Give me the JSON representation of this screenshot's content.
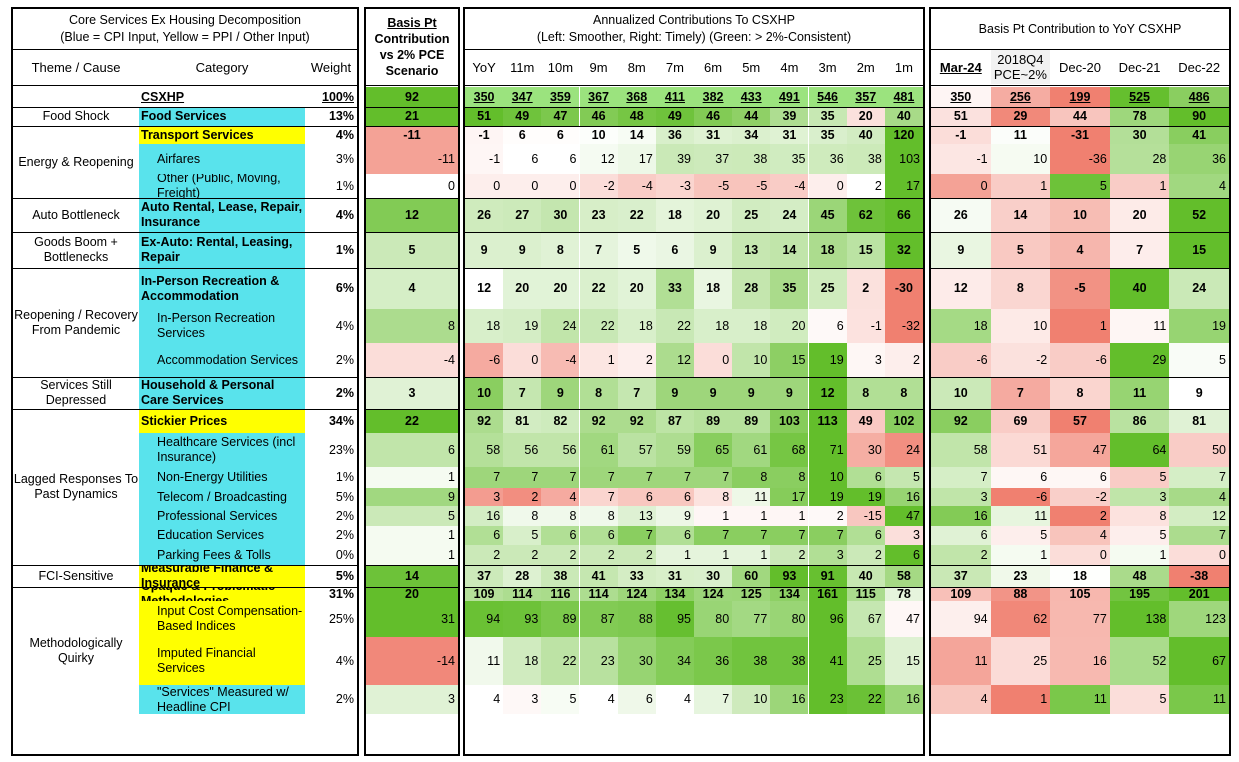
{
  "colors": {
    "blue_input": "#59e3ec",
    "yellow_input": "#ffff00",
    "high_green": "#63be2b",
    "low_red": "#f08070"
  },
  "headers": {
    "left_title_1": "Core Services Ex Housing Decomposition",
    "left_title_2": "(Blue = CPI Input, Yellow = PPI / Other Input)",
    "theme_header": "Theme / Cause",
    "category_header": "Category",
    "weight_header": "Weight",
    "basis_title_1": "Basis Pt",
    "basis_title_2": "Contribution",
    "basis_title_3": "vs 2% PCE",
    "basis_title_4": "Scenario",
    "ann_title_1": "Annualized Contributions To CSXHP",
    "ann_title_2": "(Left: Smoother, Right: Timely) (Green: > 2%-Consistent)",
    "ann_cols": [
      "YoY",
      "11m",
      "10m",
      "9m",
      "8m",
      "7m",
      "6m",
      "5m",
      "4m",
      "3m",
      "2m",
      "1m"
    ],
    "yoy_title": "Basis Pt Contribution to YoY CSXHP",
    "yoy_cols": [
      "Mar-24",
      "2018Q4 PCE~2%",
      "Dec-20",
      "Dec-21",
      "Dec-22"
    ]
  },
  "themes": [
    {
      "label": "Food Shock"
    },
    {
      "label": "Energy & Reopening"
    },
    {
      "label": "Auto Bottleneck"
    },
    {
      "label": "Goods Boom + Bottlenecks"
    },
    {
      "label": "Reopening / Recovery From Pandemic"
    },
    {
      "label": "Services Still Depressed"
    },
    {
      "label": "Lagged Responses To Past Dynamics"
    },
    {
      "label": "FCI-Sensitive"
    },
    {
      "label": "Methodologically Quirky"
    }
  ],
  "rows": [
    {
      "cat": "CSXHP",
      "weight": "100%",
      "basis": "92",
      "ann": [
        "350",
        "347",
        "359",
        "367",
        "368",
        "411",
        "382",
        "433",
        "491",
        "546",
        "357",
        "481"
      ],
      "yoy": [
        "350",
        "256",
        "199",
        "525",
        "486"
      ]
    },
    {
      "cat": "Food Services",
      "weight": "13%",
      "basis": "21",
      "ann": [
        "51",
        "49",
        "47",
        "46",
        "48",
        "49",
        "46",
        "44",
        "39",
        "35",
        "20",
        "40"
      ],
      "yoy": [
        "51",
        "29",
        "44",
        "78",
        "90"
      ]
    },
    {
      "cat": "Transport Services",
      "weight": "4%",
      "basis": "-11",
      "ann": [
        "-1",
        "6",
        "6",
        "10",
        "14",
        "36",
        "31",
        "34",
        "31",
        "35",
        "40",
        "120"
      ],
      "yoy": [
        "-1",
        "11",
        "-31",
        "30",
        "41"
      ]
    },
    {
      "cat": "Airfares",
      "weight": "3%",
      "basis": "-11",
      "ann": [
        "-1",
        "6",
        "6",
        "12",
        "17",
        "39",
        "37",
        "38",
        "35",
        "36",
        "38",
        "103"
      ],
      "yoy": [
        "-1",
        "10",
        "-36",
        "28",
        "36"
      ]
    },
    {
      "cat": "Other (Public, Moving, Freight)",
      "weight": "1%",
      "basis": "0",
      "ann": [
        "0",
        "0",
        "0",
        "-2",
        "-4",
        "-3",
        "-5",
        "-5",
        "-4",
        "0",
        "2",
        "17"
      ],
      "yoy": [
        "0",
        "1",
        "5",
        "1",
        "4"
      ]
    },
    {
      "cat": "Auto Rental, Lease, Repair, Insurance",
      "weight": "4%",
      "basis": "12",
      "ann": [
        "26",
        "27",
        "30",
        "23",
        "22",
        "18",
        "20",
        "25",
        "24",
        "45",
        "62",
        "66"
      ],
      "yoy": [
        "26",
        "14",
        "10",
        "20",
        "52"
      ]
    },
    {
      "cat": "Ex-Auto: Rental, Leasing, Repair",
      "weight": "1%",
      "basis": "5",
      "ann": [
        "9",
        "9",
        "8",
        "7",
        "5",
        "6",
        "9",
        "13",
        "14",
        "18",
        "15",
        "32"
      ],
      "yoy": [
        "9",
        "5",
        "4",
        "7",
        "15"
      ]
    },
    {
      "cat": "In-Person Recreation & Accommodation",
      "weight": "6%",
      "basis": "4",
      "ann": [
        "12",
        "20",
        "20",
        "22",
        "20",
        "33",
        "18",
        "28",
        "35",
        "25",
        "2",
        "-30"
      ],
      "yoy": [
        "12",
        "8",
        "-5",
        "40",
        "24"
      ]
    },
    {
      "cat": "In-Person Recreation Services",
      "weight": "4%",
      "basis": "8",
      "ann": [
        "18",
        "19",
        "24",
        "22",
        "18",
        "22",
        "18",
        "18",
        "20",
        "6",
        "-1",
        "-32"
      ],
      "yoy": [
        "18",
        "10",
        "1",
        "11",
        "19"
      ]
    },
    {
      "cat": "Accommodation Services",
      "weight": "2%",
      "basis": "-4",
      "ann": [
        "-6",
        "0",
        "-4",
        "1",
        "2",
        "12",
        "0",
        "10",
        "15",
        "19",
        "3",
        "2"
      ],
      "yoy": [
        "-6",
        "-2",
        "-6",
        "29",
        "5"
      ]
    },
    {
      "cat": "Household & Personal Care Services",
      "weight": "2%",
      "basis": "3",
      "ann": [
        "10",
        "7",
        "9",
        "8",
        "7",
        "9",
        "9",
        "9",
        "9",
        "12",
        "8",
        "8"
      ],
      "yoy": [
        "10",
        "7",
        "8",
        "11",
        "9"
      ]
    },
    {
      "cat": "Stickier Prices",
      "weight": "34%",
      "basis": "22",
      "ann": [
        "92",
        "81",
        "82",
        "92",
        "92",
        "87",
        "89",
        "89",
        "103",
        "113",
        "49",
        "102"
      ],
      "yoy": [
        "92",
        "69",
        "57",
        "86",
        "81"
      ]
    },
    {
      "cat": "Healthcare Services (incl Insurance)",
      "weight": "23%",
      "basis": "6",
      "ann": [
        "58",
        "56",
        "56",
        "61",
        "57",
        "59",
        "65",
        "61",
        "68",
        "71",
        "30",
        "24"
      ],
      "yoy": [
        "58",
        "51",
        "47",
        "64",
        "50"
      ]
    },
    {
      "cat": "Non-Energy Utilities",
      "weight": "1%",
      "basis": "1",
      "ann": [
        "7",
        "7",
        "7",
        "7",
        "7",
        "7",
        "7",
        "8",
        "8",
        "10",
        "6",
        "5"
      ],
      "yoy": [
        "7",
        "6",
        "6",
        "5",
        "7"
      ]
    },
    {
      "cat": "Telecom / Broadcasting",
      "weight": "5%",
      "basis": "9",
      "ann": [
        "3",
        "2",
        "4",
        "7",
        "6",
        "6",
        "8",
        "11",
        "17",
        "19",
        "19",
        "16"
      ],
      "yoy": [
        "3",
        "-6",
        "-2",
        "3",
        "4"
      ]
    },
    {
      "cat": "Professional Services",
      "weight": "2%",
      "basis": "5",
      "ann": [
        "16",
        "8",
        "8",
        "8",
        "13",
        "9",
        "1",
        "1",
        "1",
        "2",
        "-15",
        "47"
      ],
      "yoy": [
        "16",
        "11",
        "2",
        "8",
        "12"
      ]
    },
    {
      "cat": "Education Services",
      "weight": "2%",
      "basis": "1",
      "ann": [
        "6",
        "5",
        "6",
        "6",
        "7",
        "6",
        "7",
        "7",
        "7",
        "7",
        "6",
        "3"
      ],
      "yoy": [
        "6",
        "5",
        "4",
        "5",
        "7"
      ]
    },
    {
      "cat": "Parking Fees & Tolls",
      "weight": "0%",
      "basis": "1",
      "ann": [
        "2",
        "2",
        "2",
        "2",
        "2",
        "1",
        "1",
        "1",
        "2",
        "3",
        "2",
        "6"
      ],
      "yoy": [
        "2",
        "1",
        "0",
        "1",
        "0"
      ]
    },
    {
      "cat": "Measurable Finance & Insurance",
      "weight": "5%",
      "basis": "14",
      "ann": [
        "37",
        "28",
        "38",
        "41",
        "33",
        "31",
        "30",
        "60",
        "93",
        "91",
        "40",
        "58"
      ],
      "yoy": [
        "37",
        "23",
        "18",
        "48",
        "-38"
      ]
    },
    {
      "cat": "Opaque & Problematic Methodologies",
      "weight": "31%",
      "basis": "20",
      "ann": [
        "109",
        "114",
        "116",
        "114",
        "124",
        "134",
        "124",
        "125",
        "134",
        "161",
        "115",
        "78"
      ],
      "yoy": [
        "109",
        "88",
        "105",
        "195",
        "201"
      ]
    },
    {
      "cat": "Input Cost Compensation-Based Indices",
      "weight": "25%",
      "basis": "31",
      "ann": [
        "94",
        "93",
        "89",
        "87",
        "88",
        "95",
        "80",
        "77",
        "80",
        "96",
        "67",
        "47"
      ],
      "yoy": [
        "94",
        "62",
        "77",
        "138",
        "123"
      ]
    },
    {
      "cat": "Imputed Financial Services",
      "weight": "4%",
      "basis": "-14",
      "ann": [
        "11",
        "18",
        "22",
        "23",
        "30",
        "34",
        "36",
        "38",
        "38",
        "41",
        "25",
        "15"
      ],
      "yoy": [
        "11",
        "25",
        "16",
        "52",
        "67"
      ]
    },
    {
      "cat": "\"Services\" Measured w/ Headline CPI",
      "weight": "2%",
      "basis": "3",
      "ann": [
        "4",
        "3",
        "5",
        "4",
        "6",
        "4",
        "7",
        "10",
        "16",
        "23",
        "22",
        "16"
      ],
      "yoy": [
        "4",
        "1",
        "11",
        "5",
        "11"
      ]
    }
  ]
}
